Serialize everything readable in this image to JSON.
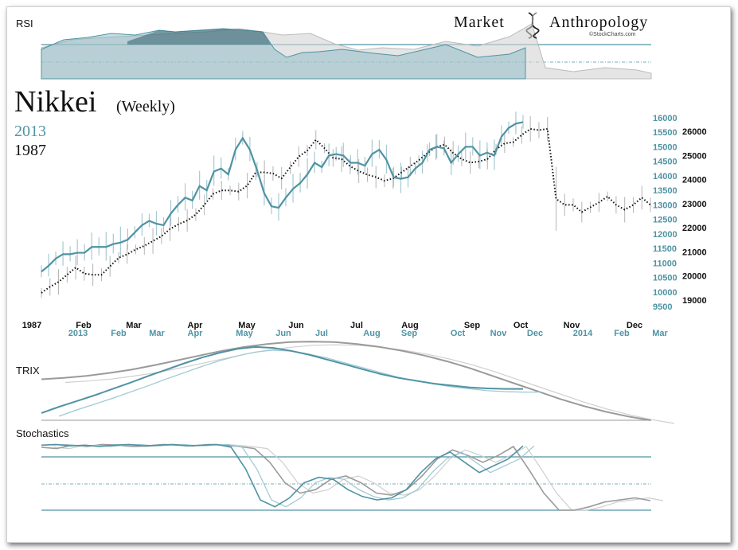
{
  "chart_data": {
    "type": "line",
    "title": "Nikkei",
    "subtitle": "(Weekly)",
    "legend": [
      {
        "label": "2013",
        "color": "#4f93a3"
      },
      {
        "label": "1987",
        "color": "#111111"
      }
    ],
    "brand": {
      "left": "Market",
      "right": "Anthropology",
      "credit": "©StockCharts.com"
    },
    "panels": {
      "rsi": "RSI",
      "trix": "TRIX",
      "stochastics": "Stochastics"
    },
    "axes": {
      "x_1987_labels": [
        "1987",
        "Feb",
        "Mar",
        "Apr",
        "May",
        "Jun",
        "Jul",
        "Aug",
        "Sep",
        "Oct",
        "Nov",
        "Dec"
      ],
      "x_2013_labels": [
        "2013",
        "Feb",
        "Mar",
        "Apr",
        "May",
        "Jun",
        "Jul",
        "Aug",
        "Sep",
        "Oct",
        "Nov",
        "Dec",
        "2014",
        "Feb",
        "Mar"
      ],
      "y_2013_ticks": [
        "16000",
        "15500",
        "15000",
        "14500",
        "14000",
        "13500",
        "13000",
        "12500",
        "12000",
        "11500",
        "11000",
        "10500",
        "10000",
        "9500"
      ],
      "y_1987_ticks": [
        "26000",
        "25000",
        "24000",
        "23000",
        "22000",
        "21000",
        "20000",
        "19000"
      ],
      "y_2013_range": [
        9500,
        16000
      ],
      "y_1987_range": [
        19000,
        26000
      ]
    },
    "series": [
      {
        "name": "2013",
        "color": "#4f93a3",
        "values": [
          10700,
          10900,
          11150,
          11300,
          11300,
          11350,
          11350,
          11550,
          11550,
          11550,
          11650,
          11700,
          11800,
          12050,
          12300,
          12450,
          12350,
          12300,
          12700,
          13000,
          13250,
          13150,
          13650,
          13500,
          14150,
          14250,
          14050,
          14900,
          15300,
          14900,
          14200,
          13400,
          12950,
          12900,
          13250,
          13550,
          13750,
          14050,
          14450,
          14300,
          14700,
          14750,
          14700,
          14450,
          14450,
          14350,
          14750,
          14900,
          14550,
          13950,
          13900,
          13950,
          14250,
          14450,
          14900,
          15000,
          14950,
          14450,
          14750,
          15000,
          15000,
          14700,
          14800,
          14700,
          15350,
          15650,
          15800,
          15850
        ]
      },
      {
        "name": "1987",
        "color": "#111111",
        "values": [
          19300,
          19550,
          19750,
          20050,
          20350,
          20100,
          20050,
          20050,
          20400,
          20750,
          20900,
          21100,
          21250,
          21450,
          21650,
          21950,
          22150,
          22300,
          22550,
          22950,
          23400,
          23550,
          23550,
          23500,
          23750,
          24300,
          24300,
          24250,
          24050,
          24500,
          24950,
          25200,
          25650,
          25300,
          24900,
          24850,
          24550,
          24350,
          24200,
          24100,
          23950,
          24050,
          24300,
          24550,
          24800,
          25100,
          25350,
          25450,
          25100,
          24850,
          24700,
          24750,
          24850,
          25250,
          25500,
          25550,
          25850,
          26100,
          26050,
          26100,
          23200,
          22950,
          22950,
          22650,
          22850,
          23050,
          23300,
          22950,
          22750,
          22950,
          23250,
          22950
        ]
      }
    ],
    "trix": {
      "series_2013": [
        -85,
        -72,
        -60,
        -48,
        -35,
        -22,
        -8,
        5,
        18,
        30,
        40,
        48,
        52,
        50,
        44,
        36,
        26,
        16,
        6,
        -4,
        -12,
        -18,
        -24,
        -28,
        -32,
        -34,
        -35,
        -35
      ],
      "series_1987": [
        -15,
        -12,
        -8,
        -2,
        5,
        14,
        24,
        34,
        44,
        52,
        58,
        62,
        63,
        62,
        58,
        52,
        44,
        34,
        22,
        8,
        -8,
        -24,
        -40,
        -56,
        -70,
        -82,
        -92,
        -100
      ]
    },
    "stochastics": {
      "series_2013": [
        95,
        96,
        94,
        95,
        93,
        95,
        96,
        94,
        95,
        96,
        94,
        95,
        96,
        92,
        60,
        15,
        5,
        18,
        40,
        48,
        45,
        30,
        20,
        15,
        18,
        30,
        55,
        75,
        85,
        70,
        55,
        65,
        75,
        94
      ],
      "series_1987": [
        92,
        90,
        95,
        93,
        96,
        95,
        93,
        94,
        96,
        95,
        94,
        96,
        95,
        93,
        90,
        70,
        40,
        25,
        30,
        45,
        50,
        40,
        25,
        22,
        30,
        50,
        75,
        88,
        80,
        70,
        80,
        93,
        60,
        25,
        0,
        0,
        5,
        12,
        15,
        18,
        14
      ]
    }
  }
}
